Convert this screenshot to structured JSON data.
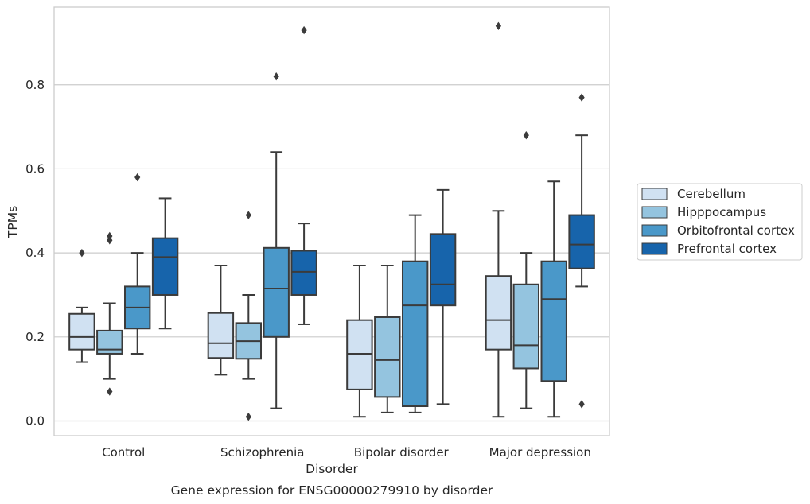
{
  "chart_data": {
    "type": "box",
    "title": "",
    "caption": "Gene expression for ENSG00000279910 by disorder",
    "xlabel": "Disorder",
    "ylabel": "TPMs",
    "ylim": [
      -0.035,
      0.985
    ],
    "yticks": [
      0.0,
      0.2,
      0.4,
      0.6,
      0.8
    ],
    "ytick_labels": [
      "0.0",
      "0.2",
      "0.4",
      "0.6",
      "0.8"
    ],
    "grid": "horizontal",
    "legend_position": "right",
    "categories": [
      "Control",
      "Schizophrenia",
      "Bipolar disorder",
      "Major depression"
    ],
    "series": [
      {
        "name": "Cerebellum",
        "color": "#d0e1f2",
        "boxes": [
          {
            "whisker_low": 0.14,
            "q1": 0.17,
            "median": 0.2,
            "q3": 0.255,
            "whisker_high": 0.27,
            "outliers": [
              0.4
            ]
          },
          {
            "whisker_low": 0.11,
            "q1": 0.15,
            "median": 0.185,
            "q3": 0.257,
            "whisker_high": 0.37,
            "outliers": []
          },
          {
            "whisker_low": 0.01,
            "q1": 0.075,
            "median": 0.16,
            "q3": 0.24,
            "whisker_high": 0.37,
            "outliers": []
          },
          {
            "whisker_low": 0.01,
            "q1": 0.17,
            "median": 0.24,
            "q3": 0.345,
            "whisker_high": 0.5,
            "outliers": [
              0.94
            ]
          }
        ]
      },
      {
        "name": "Hipppocampus",
        "color": "#94c4df",
        "boxes": [
          {
            "whisker_low": 0.1,
            "q1": 0.16,
            "median": 0.17,
            "q3": 0.215,
            "whisker_high": 0.28,
            "outliers": [
              0.07,
              0.43,
              0.44
            ]
          },
          {
            "whisker_low": 0.1,
            "q1": 0.148,
            "median": 0.19,
            "q3": 0.233,
            "whisker_high": 0.3,
            "outliers": [
              0.01,
              0.49
            ]
          },
          {
            "whisker_low": 0.02,
            "q1": 0.057,
            "median": 0.145,
            "q3": 0.247,
            "whisker_high": 0.37,
            "outliers": []
          },
          {
            "whisker_low": 0.03,
            "q1": 0.125,
            "median": 0.18,
            "q3": 0.325,
            "whisker_high": 0.4,
            "outliers": [
              0.68
            ]
          }
        ]
      },
      {
        "name": "Orbitofrontal cortex",
        "color": "#4a98c9",
        "boxes": [
          {
            "whisker_low": 0.16,
            "q1": 0.22,
            "median": 0.27,
            "q3": 0.32,
            "whisker_high": 0.4,
            "outliers": [
              0.58
            ]
          },
          {
            "whisker_low": 0.03,
            "q1": 0.2,
            "median": 0.315,
            "q3": 0.412,
            "whisker_high": 0.64,
            "outliers": [
              0.82
            ]
          },
          {
            "whisker_low": 0.02,
            "q1": 0.035,
            "median": 0.275,
            "q3": 0.38,
            "whisker_high": 0.49,
            "outliers": []
          },
          {
            "whisker_low": 0.01,
            "q1": 0.095,
            "median": 0.29,
            "q3": 0.38,
            "whisker_high": 0.57,
            "outliers": []
          }
        ]
      },
      {
        "name": "Prefrontal cortex",
        "color": "#1764ab",
        "boxes": [
          {
            "whisker_low": 0.22,
            "q1": 0.3,
            "median": 0.39,
            "q3": 0.435,
            "whisker_high": 0.53,
            "outliers": []
          },
          {
            "whisker_low": 0.23,
            "q1": 0.3,
            "median": 0.355,
            "q3": 0.405,
            "whisker_high": 0.47,
            "outliers": [
              0.93
            ]
          },
          {
            "whisker_low": 0.04,
            "q1": 0.275,
            "median": 0.325,
            "q3": 0.445,
            "whisker_high": 0.55,
            "outliers": []
          },
          {
            "whisker_low": 0.32,
            "q1": 0.363,
            "median": 0.42,
            "q3": 0.49,
            "whisker_high": 0.68,
            "outliers": [
              0.04,
              0.77
            ]
          }
        ]
      }
    ],
    "colors": {
      "line": "#3b3b3b",
      "grid": "#cccccc",
      "frame": "#cccccc",
      "background": "#ffffff"
    }
  }
}
